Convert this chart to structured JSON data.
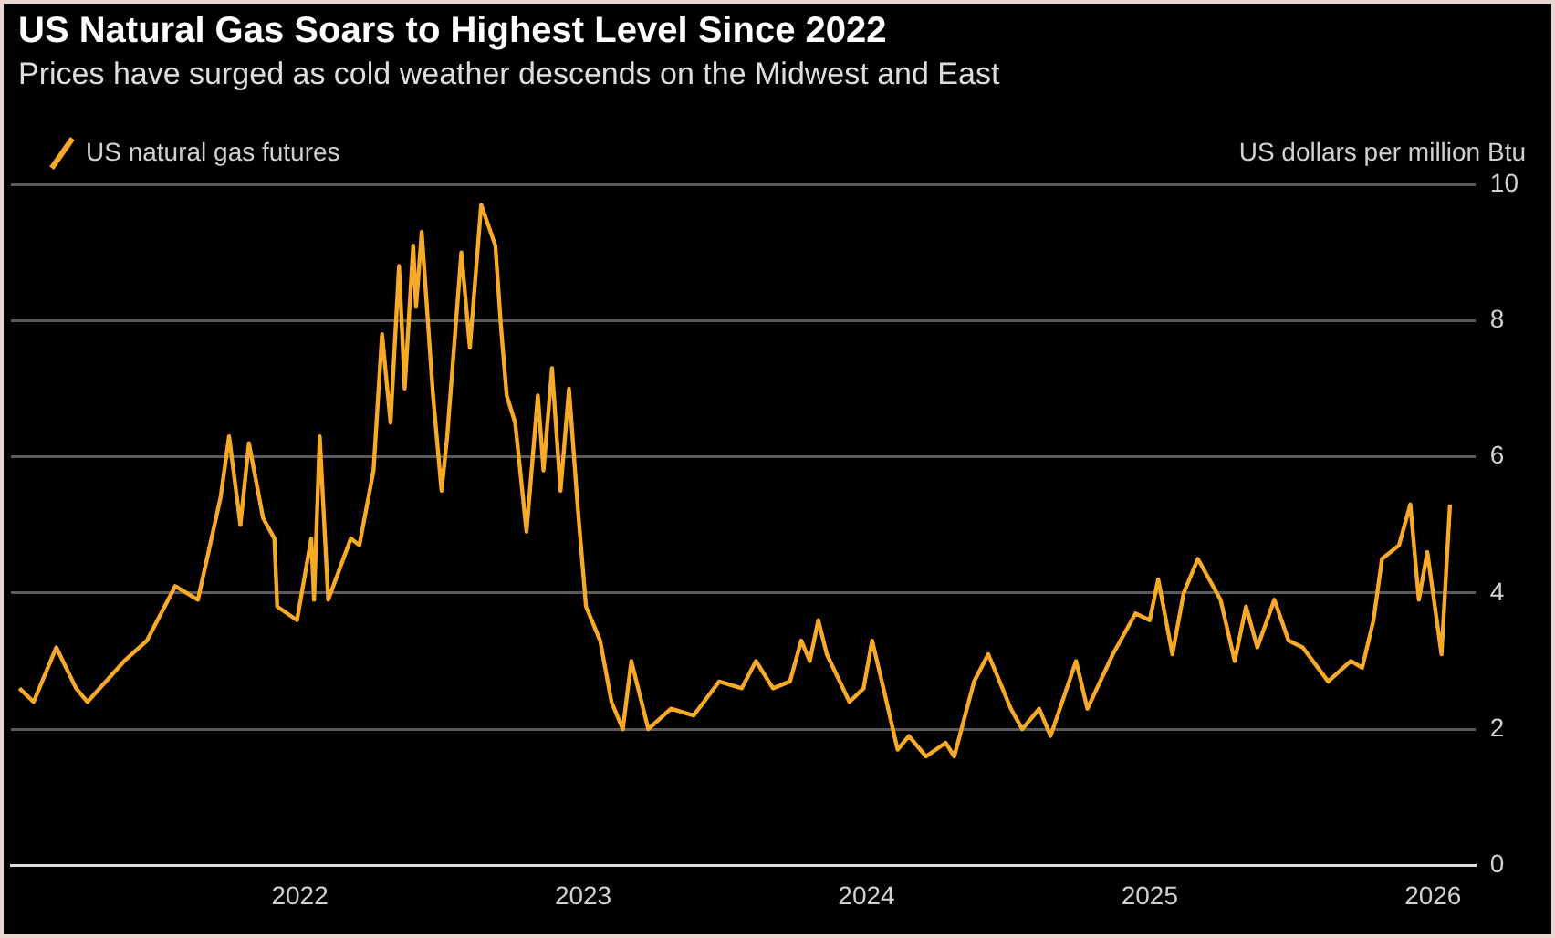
{
  "chart_data": {
    "type": "line",
    "title": "US Natural Gas Soars to Highest Level Since 2022",
    "subtitle": "Prices have surged as cold weather descends on the Midwest and East",
    "ylabel": "US dollars per million Btu",
    "series": [
      {
        "name": "US natural gas futures",
        "color": "#f7a928",
        "x": [
          2021.01,
          2021.06,
          2021.14,
          2021.21,
          2021.25,
          2021.38,
          2021.46,
          2021.56,
          2021.64,
          2021.72,
          2021.75,
          2021.79,
          2021.82,
          2021.87,
          2021.91,
          2021.92,
          2021.99,
          2022.04,
          2022.05,
          2022.07,
          2022.1,
          2022.18,
          2022.21,
          2022.26,
          2022.29,
          2022.32,
          2022.35,
          2022.37,
          2022.4,
          2022.41,
          2022.43,
          2022.47,
          2022.5,
          2022.52,
          2022.57,
          2022.6,
          2022.64,
          2022.69,
          2022.71,
          2022.73,
          2022.76,
          2022.8,
          2022.84,
          2022.86,
          2022.89,
          2022.92,
          2022.95,
          2022.98,
          2023.01,
          2023.06,
          2023.1,
          2023.14,
          2023.17,
          2023.23,
          2023.31,
          2023.39,
          2023.48,
          2023.56,
          2023.61,
          2023.67,
          2023.73,
          2023.77,
          2023.8,
          2023.83,
          2023.86,
          2023.94,
          2023.99,
          2024.02,
          2024.06,
          2024.11,
          2024.15,
          2024.21,
          2024.28,
          2024.31,
          2024.38,
          2024.43,
          2024.51,
          2024.55,
          2024.61,
          2024.65,
          2024.74,
          2024.78,
          2024.87,
          2024.95,
          2025.0,
          2025.03,
          2025.08,
          2025.12,
          2025.17,
          2025.25,
          2025.3,
          2025.34,
          2025.38,
          2025.44,
          2025.49,
          2025.54,
          2025.63,
          2025.71,
          2025.75,
          2025.79,
          2025.82,
          2025.88,
          2025.92,
          2025.95,
          2025.98,
          2026.03,
          2026.06
        ],
        "values": [
          2.6,
          2.4,
          3.2,
          2.6,
          2.4,
          3.0,
          3.3,
          4.1,
          3.9,
          5.4,
          6.3,
          5.0,
          6.2,
          5.1,
          4.8,
          3.8,
          3.6,
          4.8,
          3.9,
          6.3,
          3.9,
          4.8,
          4.7,
          5.8,
          7.8,
          6.5,
          8.8,
          7.0,
          9.1,
          8.2,
          9.3,
          6.9,
          5.5,
          6.3,
          9.0,
          7.6,
          9.7,
          9.1,
          7.9,
          6.9,
          6.5,
          4.9,
          6.9,
          5.8,
          7.3,
          5.5,
          7.0,
          5.3,
          3.8,
          3.3,
          2.4,
          2.0,
          3.0,
          2.0,
          2.3,
          2.2,
          2.7,
          2.6,
          3.0,
          2.6,
          2.7,
          3.3,
          3.0,
          3.6,
          3.1,
          2.4,
          2.6,
          3.3,
          2.6,
          1.7,
          1.9,
          1.6,
          1.8,
          1.6,
          2.7,
          3.1,
          2.3,
          2.0,
          2.3,
          1.9,
          3.0,
          2.3,
          3.1,
          3.7,
          3.6,
          4.2,
          3.1,
          4.0,
          4.5,
          3.9,
          3.0,
          3.8,
          3.2,
          3.9,
          3.3,
          3.2,
          2.7,
          3.0,
          2.9,
          3.6,
          4.5,
          4.7,
          5.3,
          3.9,
          4.6,
          3.1,
          5.3
        ]
      }
    ],
    "xlim": [
      2020.98,
      2026.15
    ],
    "xticks": [
      2022,
      2023,
      2024,
      2025,
      2026
    ],
    "ylim": [
      0,
      10
    ],
    "yticks": [
      0,
      2,
      4,
      6,
      8,
      10
    ],
    "grid": "y",
    "legend": "top left",
    "marker": "none",
    "line_style": "solid"
  }
}
